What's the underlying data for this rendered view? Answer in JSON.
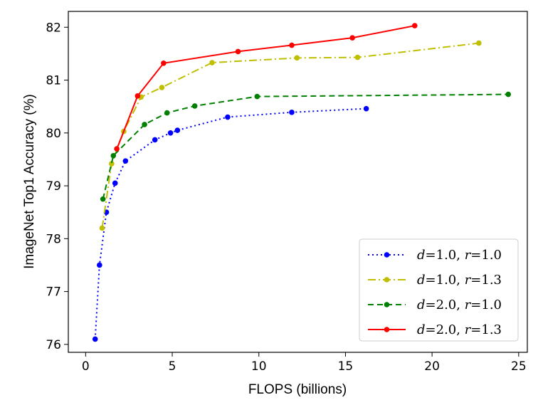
{
  "chart_data": {
    "type": "line",
    "xlabel": "FLOPS (billions)",
    "ylabel": "ImageNet Top1 Accuracy (%)",
    "xlim": [
      -1.0,
      25.5
    ],
    "ylim": [
      75.85,
      82.3
    ],
    "xticks": [
      "0",
      "5",
      "10",
      "15",
      "20",
      "25"
    ],
    "yticks": [
      "76",
      "77",
      "78",
      "79",
      "80",
      "81",
      "82"
    ],
    "grid": false,
    "legend_position": "lower-right",
    "series": [
      {
        "name": "d=1.0, r=1.0",
        "legend": {
          "v1": "d",
          "t1": "=1.0, ",
          "v2": "r",
          "t2": "=1.0"
        },
        "color": "#0000ff",
        "linestyle": "dotted",
        "x": [
          0.55,
          0.8,
          1.2,
          1.7,
          2.3,
          4.0,
          4.9,
          5.3,
          8.2,
          11.9,
          16.2
        ],
        "y": [
          76.1,
          77.5,
          78.5,
          79.05,
          79.47,
          79.87,
          80.0,
          80.05,
          80.3,
          80.39,
          80.46
        ]
      },
      {
        "name": "d=1.0, r=1.3",
        "legend": {
          "v1": "d",
          "t1": "=1.0, ",
          "v2": "r",
          "t2": "=1.3"
        },
        "color": "#bfbf00",
        "linestyle": "dashdot",
        "x": [
          0.95,
          1.5,
          2.2,
          3.2,
          4.4,
          7.3,
          12.2,
          15.7,
          22.7
        ],
        "y": [
          78.2,
          79.42,
          80.03,
          80.68,
          80.86,
          81.33,
          81.42,
          81.43,
          81.7
        ]
      },
      {
        "name": "d=2.0, r=1.0",
        "legend": {
          "v1": "d",
          "t1": "=2.0, ",
          "v2": "r",
          "t2": "=1.0"
        },
        "color": "#008000",
        "linestyle": "dashed",
        "x": [
          1.0,
          1.6,
          3.4,
          4.7,
          6.3,
          9.9,
          24.4
        ],
        "y": [
          78.75,
          79.57,
          80.16,
          80.38,
          80.51,
          80.69,
          80.73
        ]
      },
      {
        "name": "d=2.0, r=1.3",
        "legend": {
          "v1": "d",
          "t1": "=2.0, ",
          "v2": "r",
          "t2": "=1.3"
        },
        "color": "#ff0000",
        "linestyle": "solid",
        "x": [
          1.8,
          3.0,
          4.5,
          8.8,
          11.9,
          15.4,
          19.0
        ],
        "y": [
          79.7,
          80.7,
          81.32,
          81.54,
          81.66,
          81.8,
          82.03
        ]
      }
    ]
  }
}
